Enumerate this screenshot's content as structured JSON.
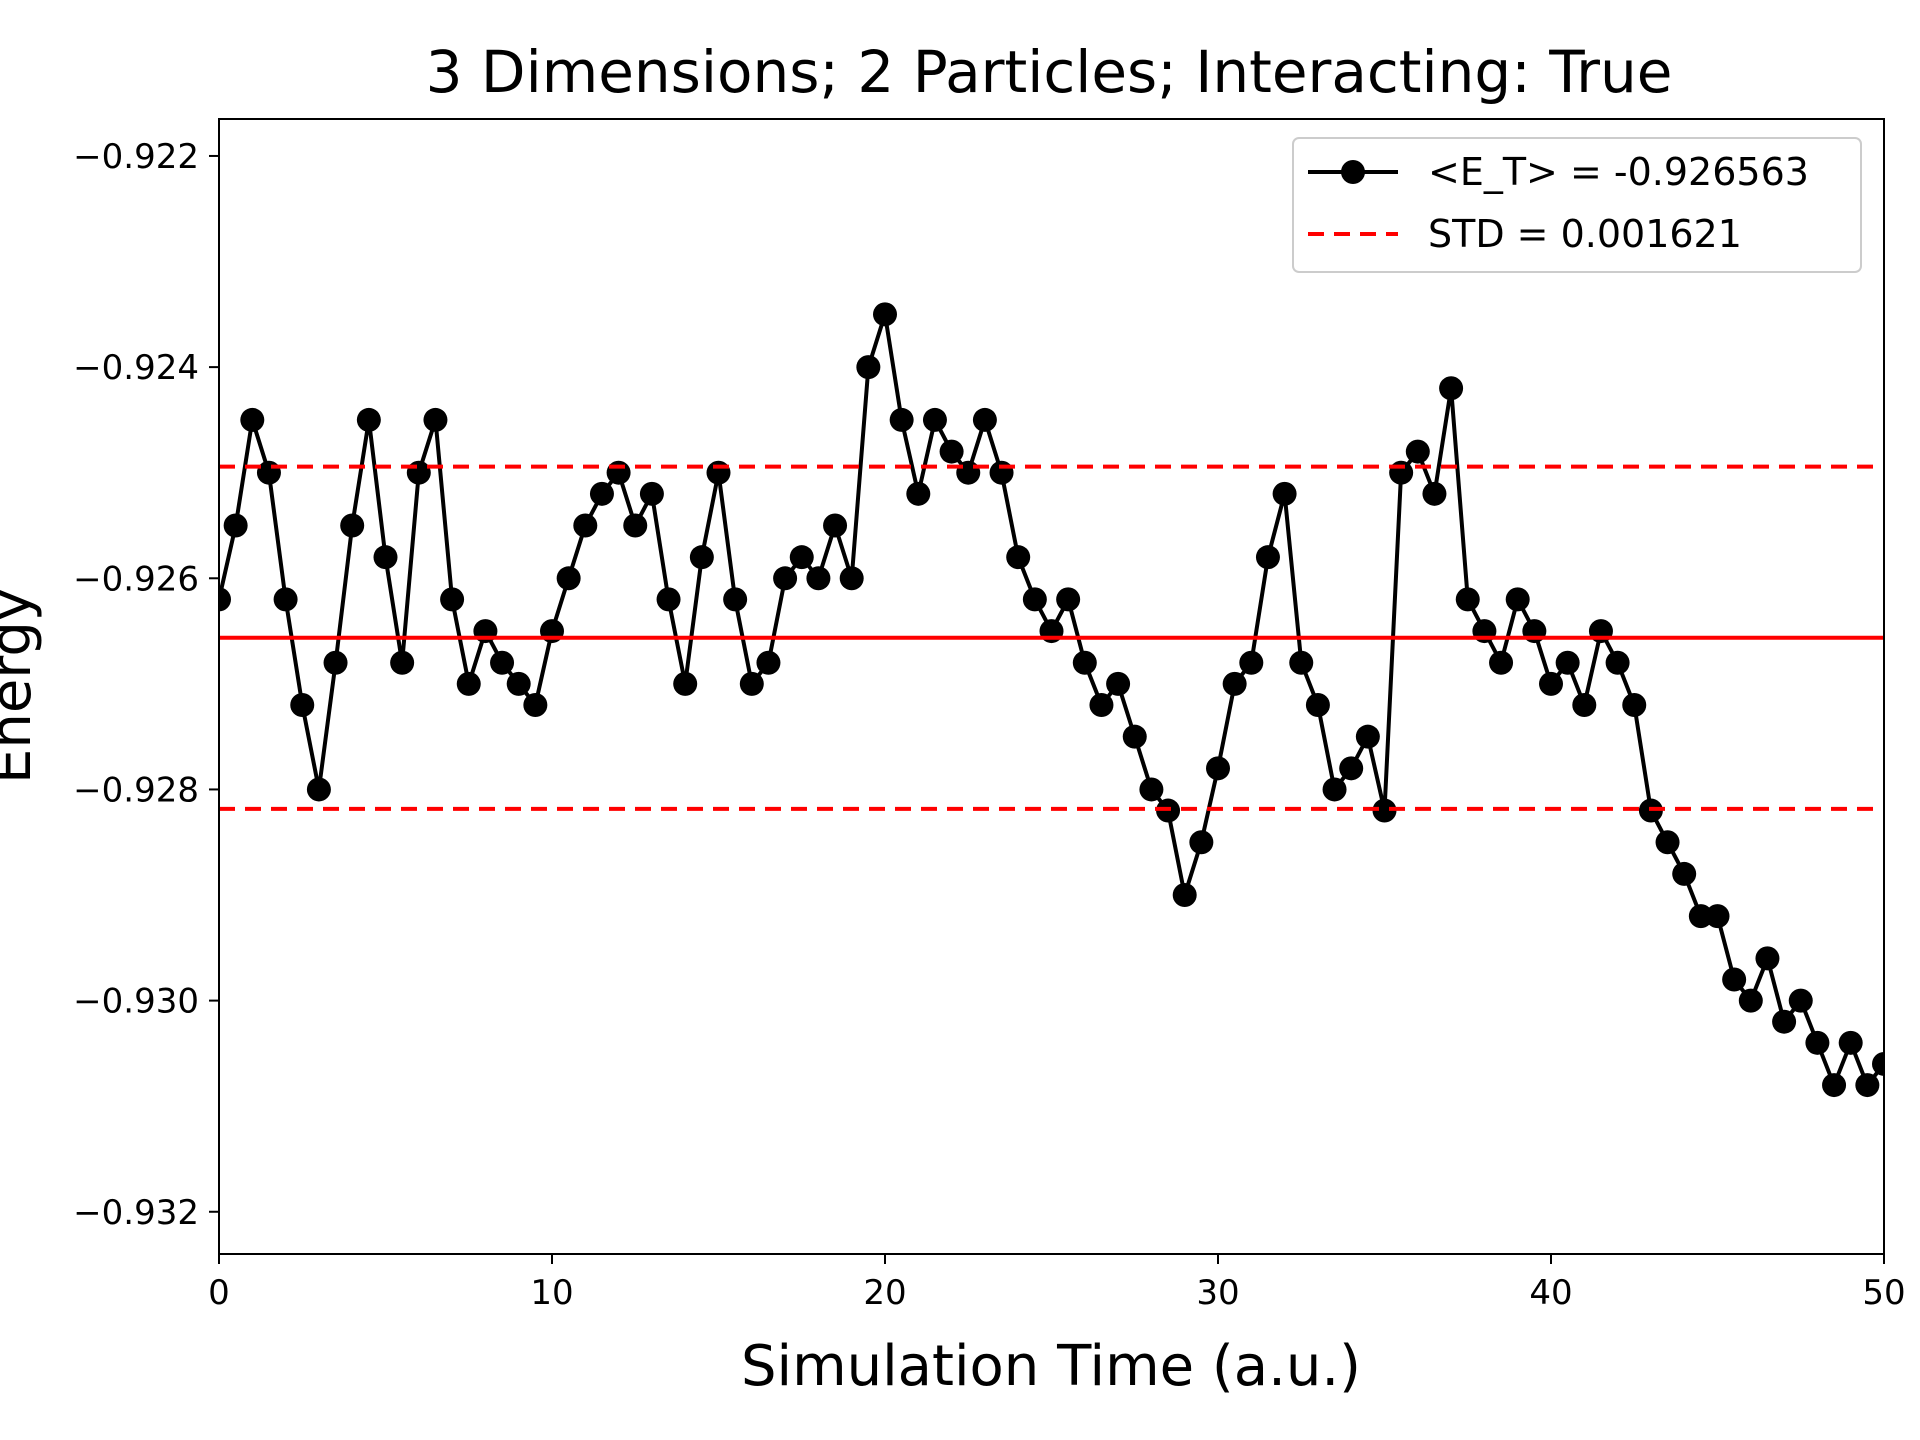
{
  "chart_data": {
    "type": "line",
    "title": "3 Dimensions; 2 Particles; Interacting: True",
    "xlabel": "Simulation Time (a.u.)",
    "ylabel": "Energy",
    "xlim": [
      0,
      50
    ],
    "ylim": [
      -0.9324,
      -0.92165
    ],
    "xticks": [
      0,
      10,
      20,
      30,
      40,
      50
    ],
    "xtick_labels": [
      "0",
      "10",
      "20",
      "30",
      "40",
      "50"
    ],
    "yticks": [
      -0.922,
      -0.924,
      -0.926,
      -0.928,
      -0.93,
      -0.932
    ],
    "ytick_labels": [
      "−0.922",
      "−0.924",
      "−0.926",
      "−0.928",
      "−0.930",
      "−0.932"
    ],
    "grid": false,
    "legend_position": "top-right",
    "series": [
      {
        "name": "<E_T> = -0.926563",
        "color": "#000000",
        "marker": "circle",
        "style": "solid",
        "x": [
          0.0,
          0.5,
          1.0,
          1.5,
          2.0,
          2.5,
          3.0,
          3.5,
          4.0,
          4.5,
          5.0,
          5.5,
          6.0,
          6.5,
          7.0,
          7.5,
          8.0,
          8.5,
          9.0,
          9.5,
          10.0,
          10.5,
          11.0,
          11.5,
          12.0,
          12.5,
          13.0,
          13.5,
          14.0,
          14.5,
          15.0,
          15.5,
          16.0,
          16.5,
          17.0,
          17.5,
          18.0,
          18.5,
          19.0,
          19.5,
          20.0,
          20.5,
          21.0,
          21.5,
          22.0,
          22.5,
          23.0,
          23.5,
          24.0,
          24.5,
          25.0,
          25.5,
          26.0,
          26.5,
          27.0,
          27.5,
          28.0,
          28.5,
          29.0,
          29.5,
          30.0,
          30.5,
          31.0,
          31.5,
          32.0,
          32.5,
          33.0,
          33.5,
          34.0,
          34.5,
          35.0,
          35.5,
          36.0,
          36.5,
          37.0,
          37.5,
          38.0,
          38.5,
          39.0,
          39.5,
          40.0,
          40.5,
          41.0,
          41.5,
          42.0,
          42.5,
          43.0,
          43.5,
          44.0,
          44.5,
          45.0,
          45.5,
          46.0,
          46.5,
          47.0,
          47.5,
          48.0,
          48.5,
          49.0,
          49.5,
          50.0
        ],
        "y": [
          -0.9262,
          -0.9255,
          -0.9245,
          -0.925,
          -0.9262,
          -0.9272,
          -0.928,
          -0.9268,
          -0.9255,
          -0.9245,
          -0.9258,
          -0.9268,
          -0.925,
          -0.9245,
          -0.9262,
          -0.927,
          -0.9265,
          -0.9268,
          -0.927,
          -0.9272,
          -0.9265,
          -0.926,
          -0.9255,
          -0.9252,
          -0.925,
          -0.9255,
          -0.9252,
          -0.9262,
          -0.927,
          -0.9258,
          -0.925,
          -0.9262,
          -0.927,
          -0.9268,
          -0.926,
          -0.9258,
          -0.926,
          -0.9255,
          -0.926,
          -0.924,
          -0.9235,
          -0.9245,
          -0.9252,
          -0.9245,
          -0.9248,
          -0.925,
          -0.9245,
          -0.925,
          -0.9258,
          -0.9262,
          -0.9265,
          -0.9262,
          -0.9268,
          -0.9272,
          -0.927,
          -0.9275,
          -0.928,
          -0.9282,
          -0.929,
          -0.9285,
          -0.9278,
          -0.927,
          -0.9268,
          -0.9258,
          -0.9252,
          -0.9268,
          -0.9272,
          -0.928,
          -0.9278,
          -0.9275,
          -0.9282,
          -0.925,
          -0.9248,
          -0.9252,
          -0.9242,
          -0.9262,
          -0.9265,
          -0.9268,
          -0.9262,
          -0.9265,
          -0.927,
          -0.9268,
          -0.9272,
          -0.9265,
          -0.9268,
          -0.9272,
          -0.9282,
          -0.9285,
          -0.9288,
          -0.9292,
          -0.9292,
          -0.9298,
          -0.93,
          -0.9296,
          -0.9302,
          -0.93,
          -0.9304,
          -0.9308,
          -0.9304,
          -0.9308,
          -0.9306
        ]
      },
      {
        "name": "STD = 0.001621",
        "color": "#ff0000",
        "style": "dashed",
        "bounds": [
          -0.924942,
          -0.928184
        ]
      }
    ],
    "mean_line": {
      "y": -0.926563,
      "color": "#ff0000",
      "style": "solid"
    }
  }
}
